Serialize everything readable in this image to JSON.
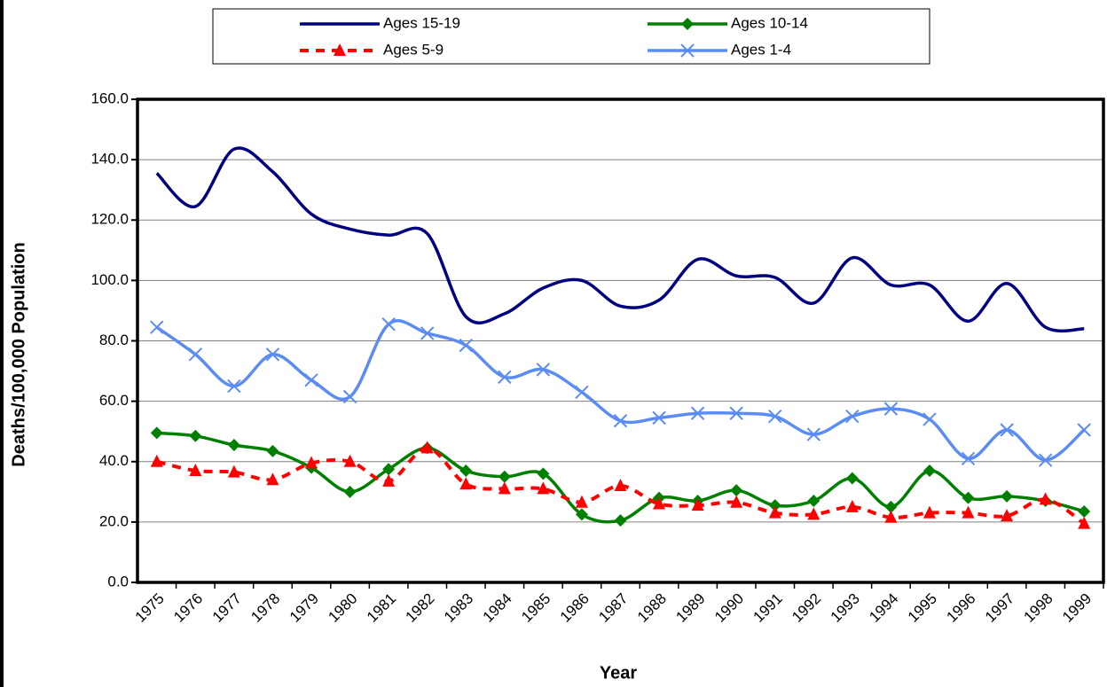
{
  "chart_data": {
    "type": "line",
    "x_label": "Year",
    "y_label": "Deaths/100,000 Population",
    "categories": [
      "1975",
      "1976",
      "1977",
      "1978",
      "1979",
      "1980",
      "1981",
      "1982",
      "1983",
      "1984",
      "1985",
      "1986",
      "1987",
      "1988",
      "1989",
      "1990",
      "1991",
      "1992",
      "1993",
      "1994",
      "1995",
      "1996",
      "1997",
      "1998",
      "1999"
    ],
    "series": [
      {
        "name": "Ages 15-19",
        "color": "#000080",
        "marker": "none",
        "dash": "solid",
        "values": [
          135.5,
          124.5,
          143.5,
          136,
          122,
          117,
          115,
          115.5,
          88,
          89,
          97.5,
          100,
          91.5,
          93.5,
          107,
          101.5,
          101,
          92.5,
          107.5,
          98.5,
          98.5,
          86.5,
          99,
          84.5,
          84
        ]
      },
      {
        "name": "Ages 10-14",
        "color": "#008000",
        "marker": "diamond",
        "dash": "solid",
        "values": [
          49.5,
          48.5,
          45.5,
          43.5,
          38,
          30,
          37.5,
          44.5,
          37,
          35,
          36,
          22.5,
          20.5,
          28,
          27,
          30.5,
          25.5,
          27,
          34.5,
          25,
          37,
          28,
          28.5,
          27,
          23.5
        ]
      },
      {
        "name": "Ages 5-9",
        "color": "#ff0000",
        "marker": "triangle",
        "dash": "dashed",
        "values": [
          40,
          37,
          36.5,
          34,
          39.5,
          40,
          33.5,
          44.5,
          32.5,
          31,
          31,
          26.5,
          32,
          26,
          25.5,
          26.5,
          23,
          22.5,
          25,
          21.5,
          23,
          23,
          22,
          27.5,
          19.5
        ]
      },
      {
        "name": "Ages 1-4",
        "color": "#5b8cf5",
        "marker": "x",
        "dash": "solid",
        "values": [
          84.5,
          75.5,
          65,
          75.5,
          67,
          61.5,
          85.5,
          82.5,
          78.5,
          68,
          70.5,
          63,
          53.5,
          54.5,
          56,
          56,
          55,
          49,
          55,
          57.5,
          54,
          41,
          50.5,
          40.5,
          50.5
        ]
      }
    ],
    "ylim": [
      0,
      160
    ],
    "yticks": [
      {
        "value": 0,
        "label": "0.0"
      },
      {
        "value": 20,
        "label": "20.0"
      },
      {
        "value": 40,
        "label": "40.0"
      },
      {
        "value": 60,
        "label": "60.0"
      },
      {
        "value": 80,
        "label": "80.0"
      },
      {
        "value": 100,
        "label": "100.0"
      },
      {
        "value": 120,
        "label": "120.0"
      },
      {
        "value": 140,
        "label": "140.0"
      },
      {
        "value": 160,
        "label": "160.0"
      }
    ],
    "grid": true,
    "smooth": true,
    "legend_position": "top"
  }
}
